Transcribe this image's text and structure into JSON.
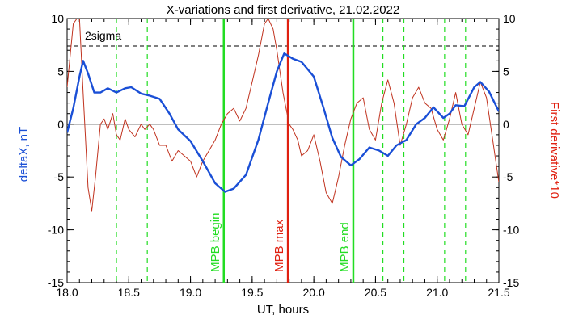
{
  "chart_data": {
    "type": "line",
    "title": "X-variations and first derivative, 21.02.2022",
    "xlabel": "UT, hours",
    "ylabel_left": "deltaX, nT",
    "ylabel_right": "First derivative*10",
    "xlim": [
      18.0,
      21.5
    ],
    "ylim": [
      -15,
      10
    ],
    "x_ticks": [
      "18.0",
      "18.5",
      "19.0",
      "19.5",
      "20.0",
      "20.5",
      "21.0",
      "21.5"
    ],
    "x_tick_values": [
      18.0,
      18.5,
      19.0,
      19.5,
      20.0,
      20.5,
      21.0,
      21.5
    ],
    "y_ticks": [
      "10",
      "5",
      "0",
      "-5",
      "-10",
      "-15"
    ],
    "y_tick_values": [
      10,
      5,
      0,
      -5,
      -10,
      -15
    ],
    "sigma_label": "2sigma",
    "sigma_level": 7.4,
    "colors": {
      "deltaX": "#1a4fd6",
      "derivative": "#c0321e",
      "markers": "#22dd22",
      "mpb_max": "#e02010",
      "ylabel_left": "#1a4fd6",
      "ylabel_right": "#e02010"
    },
    "series": [
      {
        "name": "deltaX",
        "points": [
          [
            18.0,
            -0.8
          ],
          [
            18.05,
            1.5
          ],
          [
            18.1,
            4.5
          ],
          [
            18.13,
            6.0
          ],
          [
            18.17,
            4.8
          ],
          [
            18.22,
            3.0
          ],
          [
            18.27,
            3.0
          ],
          [
            18.33,
            3.4
          ],
          [
            18.4,
            3.0
          ],
          [
            18.47,
            3.4
          ],
          [
            18.52,
            3.5
          ],
          [
            18.6,
            2.9
          ],
          [
            18.67,
            2.7
          ],
          [
            18.75,
            2.4
          ],
          [
            18.83,
            1.0
          ],
          [
            18.9,
            -0.5
          ],
          [
            19.0,
            -1.6
          ],
          [
            19.1,
            -3.5
          ],
          [
            19.2,
            -5.6
          ],
          [
            19.28,
            -6.4
          ],
          [
            19.35,
            -6.1
          ],
          [
            19.45,
            -4.8
          ],
          [
            19.55,
            -1.5
          ],
          [
            19.63,
            2.0
          ],
          [
            19.7,
            5.0
          ],
          [
            19.76,
            6.7
          ],
          [
            19.83,
            6.2
          ],
          [
            19.9,
            5.9
          ],
          [
            20.0,
            4.5
          ],
          [
            20.08,
            1.5
          ],
          [
            20.15,
            -1.3
          ],
          [
            20.22,
            -3.1
          ],
          [
            20.3,
            -3.9
          ],
          [
            20.37,
            -3.3
          ],
          [
            20.45,
            -2.2
          ],
          [
            20.53,
            -2.5
          ],
          [
            20.6,
            -3.0
          ],
          [
            20.67,
            -2.0
          ],
          [
            20.75,
            -1.5
          ],
          [
            20.83,
            0.0
          ],
          [
            20.9,
            0.6
          ],
          [
            20.97,
            1.6
          ],
          [
            21.05,
            0.6
          ],
          [
            21.1,
            1.0
          ],
          [
            21.15,
            1.8
          ],
          [
            21.22,
            1.7
          ],
          [
            21.3,
            3.5
          ],
          [
            21.35,
            4.0
          ],
          [
            21.42,
            3.1
          ],
          [
            21.5,
            1.2
          ]
        ]
      },
      {
        "name": "First derivative*10",
        "points": [
          [
            18.0,
            3.5
          ],
          [
            18.05,
            9.5
          ],
          [
            18.08,
            10.0
          ],
          [
            18.1,
            10.0
          ],
          [
            18.13,
            3.0
          ],
          [
            18.17,
            -6.0
          ],
          [
            18.2,
            -8.2
          ],
          [
            18.23,
            -5.0
          ],
          [
            18.27,
            0.0
          ],
          [
            18.3,
            0.5
          ],
          [
            18.33,
            -0.5
          ],
          [
            18.37,
            1.0
          ],
          [
            18.4,
            -1.0
          ],
          [
            18.43,
            -1.5
          ],
          [
            18.47,
            0.5
          ],
          [
            18.5,
            -0.5
          ],
          [
            18.55,
            -1.2
          ],
          [
            18.6,
            0.0
          ],
          [
            18.63,
            -0.5
          ],
          [
            18.67,
            0.0
          ],
          [
            18.7,
            -0.5
          ],
          [
            18.75,
            -2.0
          ],
          [
            18.8,
            -2.0
          ],
          [
            18.85,
            -3.5
          ],
          [
            18.9,
            -2.5
          ],
          [
            18.95,
            -3.0
          ],
          [
            19.0,
            -3.5
          ],
          [
            19.05,
            -5.0
          ],
          [
            19.1,
            -3.5
          ],
          [
            19.15,
            -2.5
          ],
          [
            19.2,
            -1.5
          ],
          [
            19.25,
            0.0
          ],
          [
            19.3,
            1.0
          ],
          [
            19.35,
            1.5
          ],
          [
            19.4,
            0.3
          ],
          [
            19.45,
            1.5
          ],
          [
            19.5,
            4.0
          ],
          [
            19.55,
            6.5
          ],
          [
            19.6,
            9.5
          ],
          [
            19.63,
            10.0
          ],
          [
            19.67,
            9.0
          ],
          [
            19.7,
            7.0
          ],
          [
            19.75,
            3.0
          ],
          [
            19.8,
            0.0
          ],
          [
            19.83,
            -0.5
          ],
          [
            19.87,
            -1.5
          ],
          [
            19.9,
            -3.0
          ],
          [
            19.95,
            -2.5
          ],
          [
            20.0,
            -1.0
          ],
          [
            20.05,
            -3.5
          ],
          [
            20.1,
            -6.5
          ],
          [
            20.15,
            -7.5
          ],
          [
            20.2,
            -5.0
          ],
          [
            20.25,
            -2.0
          ],
          [
            20.3,
            0.5
          ],
          [
            20.35,
            2.0
          ],
          [
            20.4,
            2.5
          ],
          [
            20.45,
            -0.5
          ],
          [
            20.5,
            -1.5
          ],
          [
            20.55,
            2.0
          ],
          [
            20.6,
            4.2
          ],
          [
            20.65,
            2.0
          ],
          [
            20.7,
            -2.0
          ],
          [
            20.75,
            0.0
          ],
          [
            20.8,
            2.5
          ],
          [
            20.85,
            3.5
          ],
          [
            20.9,
            2.0
          ],
          [
            20.95,
            1.5
          ],
          [
            21.0,
            -0.5
          ],
          [
            21.05,
            -1.5
          ],
          [
            21.1,
            0.5
          ],
          [
            21.15,
            3.0
          ],
          [
            21.2,
            0.0
          ],
          [
            21.25,
            -1.0
          ],
          [
            21.3,
            1.5
          ],
          [
            21.35,
            4.0
          ],
          [
            21.4,
            2.5
          ],
          [
            21.45,
            -1.5
          ],
          [
            21.5,
            -5.5
          ]
        ]
      }
    ],
    "markers": [
      {
        "x": 18.4,
        "style": "dashed"
      },
      {
        "x": 18.65,
        "style": "dashed"
      },
      {
        "x": 19.27,
        "style": "solid",
        "label": "MPB begin"
      },
      {
        "x": 19.79,
        "style": "solid",
        "label": "MPB max"
      },
      {
        "x": 20.32,
        "style": "solid",
        "label": "MPB end"
      },
      {
        "x": 20.56,
        "style": "dashed"
      },
      {
        "x": 20.73,
        "style": "dashed"
      },
      {
        "x": 21.06,
        "style": "dashed"
      },
      {
        "x": 21.23,
        "style": "dashed"
      }
    ]
  }
}
